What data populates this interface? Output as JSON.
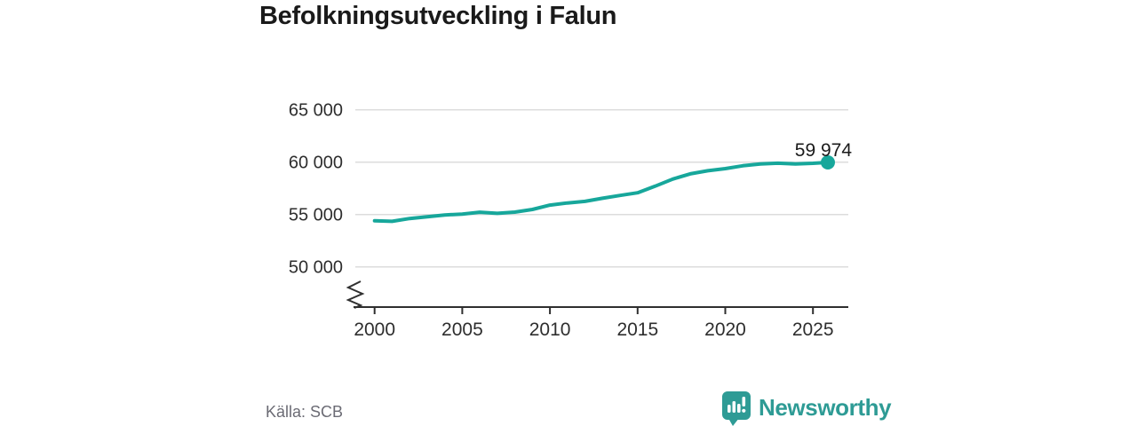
{
  "title": "Befolkningsutveckling i Falun",
  "source": "Källa: SCB",
  "branding": {
    "name": "Newsworthy",
    "logo_icon": "speech-bubble-bar-chart-icon",
    "color": "#2e9b95"
  },
  "colors": {
    "line": "#17a79b",
    "end_dot": "#17a79b",
    "grid": "#dcdcdc",
    "axis": "#2f2f2f",
    "title_text": "#1a1a1a",
    "tick_text": "#2e2e2e",
    "end_label_text": "#1a1a1a",
    "source_text": "#6b6b74"
  },
  "chart_data": {
    "type": "line",
    "title": "Befolkningsutveckling i Falun",
    "xlabel": "",
    "ylabel": "",
    "legend": "none",
    "grid": "horizontal",
    "axis_break": true,
    "xlim": [
      2000,
      2026.9
    ],
    "ylim": [
      50000,
      65000
    ],
    "x": [
      2000,
      2001,
      2002,
      2003,
      2004,
      2005,
      2006,
      2007,
      2008,
      2009,
      2010,
      2011,
      2012,
      2013,
      2014,
      2015,
      2016,
      2017,
      2018,
      2019,
      2020,
      2021,
      2022,
      2023,
      2024,
      2025,
      2025.85
    ],
    "values": [
      54400,
      54350,
      54620,
      54790,
      54960,
      55040,
      55220,
      55110,
      55230,
      55480,
      55900,
      56100,
      56250,
      56550,
      56820,
      57080,
      57700,
      58380,
      58880,
      59180,
      59380,
      59650,
      59820,
      59900,
      59830,
      59890,
      59974
    ],
    "end_value": 59974,
    "end_label": "59 974",
    "x_ticks": [
      {
        "value": 2000,
        "label": "2000"
      },
      {
        "value": 2005,
        "label": "2005"
      },
      {
        "value": 2010,
        "label": "2010"
      },
      {
        "value": 2015,
        "label": "2015"
      },
      {
        "value": 2020,
        "label": "2020"
      },
      {
        "value": 2025,
        "label": "2025"
      }
    ],
    "y_ticks": [
      {
        "value": 65000,
        "label": "65 000"
      },
      {
        "value": 60000,
        "label": "60 000"
      },
      {
        "value": 55000,
        "label": "55 000"
      },
      {
        "value": 50000,
        "label": "50 000"
      }
    ]
  }
}
